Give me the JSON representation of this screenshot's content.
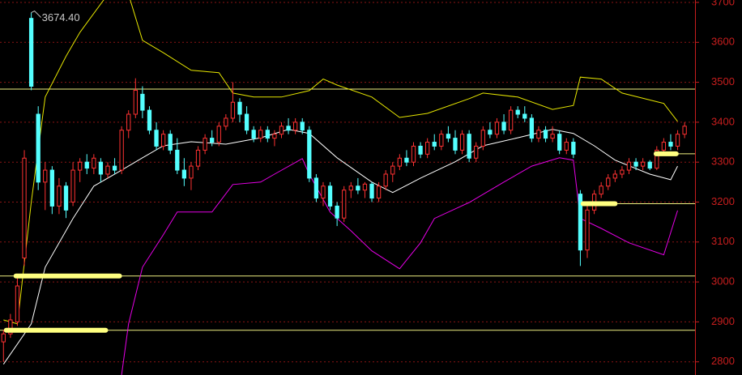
{
  "chart_data": {
    "type": "candlestick",
    "xlim": [
      -0.5,
      99.5
    ],
    "ylim": [
      2767,
      3706
    ],
    "yticks": [
      2800,
      2900,
      3000,
      3100,
      3200,
      3300,
      3400,
      3500,
      3600,
      3700
    ],
    "grid": true,
    "up_color": "#ff3232",
    "down_color": "#54ffff",
    "axis_color": "#c81e1e",
    "open": [
      2850,
      2870,
      2900,
      3060,
      3660,
      3420,
      3250,
      3280,
      3190,
      3240,
      3200,
      3280,
      3300,
      3285,
      3300,
      3270,
      3290,
      3280,
      3380,
      3420,
      3470,
      3430,
      3380,
      3340,
      3370,
      3330,
      3280,
      3260,
      3290,
      3330,
      3360,
      3350,
      3390,
      3410,
      3450,
      3420,
      3380,
      3360,
      3380,
      3360,
      3370,
      3390,
      3380,
      3400,
      3380,
      3260,
      3210,
      3240,
      3190,
      3160,
      3230,
      3240,
      3230,
      3245,
      3210,
      3240,
      3270,
      3290,
      3310,
      3300,
      3340,
      3320,
      3350,
      3340,
      3370,
      3360,
      3330,
      3370,
      3310,
      3340,
      3380,
      3370,
      3400,
      3380,
      3430,
      3420,
      3410,
      3360,
      3380,
      3360,
      3370,
      3330,
      3350,
      3220,
      3080,
      3180,
      3220,
      3240,
      3260,
      3270,
      3280,
      3300,
      3290,
      3300,
      3285,
      3330,
      3350,
      3340,
      3370
    ],
    "high": [
      2880,
      2920,
      3010,
      3330,
      3674.4,
      3440,
      3300,
      3290,
      3260,
      3250,
      3300,
      3310,
      3320,
      3320,
      3310,
      3300,
      3310,
      3390,
      3430,
      3510,
      3490,
      3440,
      3400,
      3380,
      3380,
      3360,
      3310,
      3300,
      3340,
      3370,
      3380,
      3400,
      3420,
      3500,
      3460,
      3440,
      3390,
      3390,
      3390,
      3380,
      3400,
      3410,
      3410,
      3410,
      3390,
      3270,
      3250,
      3250,
      3200,
      3240,
      3250,
      3260,
      3250,
      3250,
      3250,
      3280,
      3300,
      3320,
      3330,
      3350,
      3350,
      3360,
      3370,
      3380,
      3390,
      3380,
      3380,
      3380,
      3350,
      3390,
      3400,
      3410,
      3420,
      3440,
      3440,
      3440,
      3420,
      3390,
      3390,
      3390,
      3380,
      3360,
      3360,
      3230,
      3200,
      3230,
      3250,
      3270,
      3280,
      3290,
      3310,
      3310,
      3310,
      3305,
      3340,
      3360,
      3370,
      3380,
      3400
    ],
    "low": [
      2800,
      2860,
      2890,
      3040,
      3480,
      3230,
      3180,
      3170,
      3170,
      3160,
      3190,
      3250,
      3270,
      3270,
      3250,
      3260,
      3270,
      3270,
      3360,
      3410,
      3410,
      3370,
      3330,
      3330,
      3320,
      3270,
      3240,
      3230,
      3280,
      3320,
      3340,
      3340,
      3380,
      3400,
      3400,
      3370,
      3350,
      3350,
      3350,
      3340,
      3360,
      3370,
      3370,
      3370,
      3250,
      3200,
      3190,
      3180,
      3140,
      3150,
      3210,
      3220,
      3210,
      3200,
      3200,
      3230,
      3250,
      3280,
      3290,
      3290,
      3310,
      3310,
      3330,
      3330,
      3350,
      3320,
      3320,
      3300,
      3300,
      3330,
      3360,
      3360,
      3370,
      3370,
      3410,
      3400,
      3350,
      3350,
      3350,
      3350,
      3320,
      3320,
      3310,
      3040,
      3060,
      3170,
      3210,
      3230,
      3250,
      3260,
      3270,
      3280,
      3280,
      3280,
      3280,
      3320,
      3330,
      3330,
      3360
    ],
    "close": [
      2870,
      2905,
      2990,
      3310,
      3490,
      3250,
      3280,
      3190,
      3240,
      3180,
      3280,
      3300,
      3285,
      3310,
      3270,
      3290,
      3280,
      3380,
      3420,
      3480,
      3430,
      3380,
      3340,
      3370,
      3330,
      3280,
      3260,
      3290,
      3330,
      3360,
      3350,
      3390,
      3410,
      3450,
      3420,
      3380,
      3360,
      3380,
      3360,
      3370,
      3390,
      3380,
      3400,
      3380,
      3260,
      3210,
      3240,
      3190,
      3160,
      3230,
      3240,
      3230,
      3245,
      3210,
      3240,
      3270,
      3290,
      3310,
      3300,
      3340,
      3320,
      3350,
      3340,
      3370,
      3360,
      3330,
      3370,
      3310,
      3340,
      3380,
      3370,
      3400,
      3380,
      3430,
      3420,
      3410,
      3360,
      3380,
      3360,
      3370,
      3330,
      3350,
      3320,
      3080,
      3180,
      3220,
      3240,
      3260,
      3270,
      3280,
      3300,
      3290,
      3300,
      3285,
      3330,
      3350,
      3340,
      3370,
      3390
    ],
    "lines": [
      {
        "color": "#e6e600",
        "x": [
          0,
          2,
          4,
          6,
          9,
          11,
          15,
          18,
          20,
          23,
          27,
          31,
          33,
          36,
          40,
          44,
          46,
          48,
          53,
          57,
          61,
          67,
          69,
          74,
          79,
          82,
          83,
          86,
          89,
          95,
          97
        ],
        "values": [
          2905,
          2895,
          3200,
          3463,
          3565,
          3625,
          3720,
          3720,
          3605,
          3574,
          3530,
          3524,
          3473,
          3463,
          3463,
          3479,
          3508,
          3493,
          3463,
          3412,
          3422,
          3459,
          3473,
          3463,
          3432,
          3442,
          3513,
          3508,
          3473,
          3447,
          3402
        ]
      },
      {
        "color": "#ffffff",
        "x": [
          0,
          4,
          6,
          10,
          13,
          17,
          20,
          23,
          27,
          32,
          37,
          41,
          44,
          48,
          53,
          56,
          60,
          65,
          69,
          74,
          79,
          82,
          85,
          88,
          93,
          96,
          97
        ],
        "values": [
          2794,
          2895,
          3037,
          3159,
          3240,
          3280,
          3311,
          3341,
          3351,
          3345,
          3361,
          3382,
          3372,
          3311,
          3250,
          3224,
          3260,
          3301,
          3341,
          3361,
          3382,
          3372,
          3341,
          3305,
          3270,
          3256,
          3290
        ]
      },
      {
        "color": "#e600e6",
        "x": [
          17,
          18,
          20,
          23,
          25,
          30,
          33,
          37,
          39,
          43,
          44,
          47,
          50,
          53,
          57,
          60,
          62,
          67,
          72,
          76,
          80,
          82,
          83,
          86,
          90,
          95,
          97
        ],
        "values": [
          2767,
          2895,
          3037,
          3118,
          3175,
          3175,
          3244,
          3250,
          3270,
          3309,
          3270,
          3175,
          3128,
          3078,
          3033,
          3098,
          3159,
          3199,
          3250,
          3290,
          3311,
          3305,
          3159,
          3134,
          3098,
          3068,
          3179
        ]
      }
    ],
    "levels": [
      {
        "value": 3483,
        "from": -0.5
      },
      {
        "value": 3321,
        "from": 93.9
      },
      {
        "value": 3196,
        "from": 83.4
      },
      {
        "value": 3015,
        "from": -0.5
      },
      {
        "value": 2879,
        "from": -0.5
      }
    ],
    "level_color": "#f0f080",
    "highlights": [
      {
        "value": 3015,
        "x": [
          1.8,
          16.7
        ]
      },
      {
        "value": 2879,
        "x": [
          0.4,
          14.7
        ]
      },
      {
        "value": 3196,
        "x": [
          83.4,
          88
        ]
      },
      {
        "value": 3321,
        "x": [
          93.9,
          96.8
        ]
      }
    ],
    "highlight_color": "#ffff80",
    "annotation": {
      "label": "3674.40",
      "index": 4
    }
  }
}
